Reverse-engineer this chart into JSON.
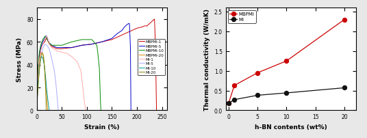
{
  "left_chart": {
    "xlabel": "Strain (%)",
    "ylabel": "Stress (MPa)",
    "xlim": [
      0,
      260
    ],
    "ylim": [
      0,
      90
    ],
    "xticks": [
      0,
      50,
      100,
      150,
      200,
      250
    ],
    "yticks": [
      0,
      20,
      40,
      60,
      80
    ],
    "curves": {
      "MBPMI-1": {
        "color": "#cc0000",
        "x": [
          0,
          2,
          5,
          8,
          12,
          16,
          18,
          20,
          22,
          25,
          30,
          40,
          50,
          70,
          90,
          110,
          130,
          150,
          160,
          170,
          180,
          190,
          200,
          210,
          215,
          220,
          225,
          230,
          235,
          237,
          239
        ],
        "y": [
          0,
          28,
          46,
          54,
          58,
          60,
          62,
          63,
          61,
          58,
          56,
          54,
          54,
          55,
          57,
          58,
          60,
          62,
          64,
          66,
          68,
          70,
          72,
          73,
          74,
          74,
          76,
          78,
          80,
          55,
          0
        ]
      },
      "MBPMI-5": {
        "color": "#0000cc",
        "x": [
          0,
          2,
          5,
          8,
          12,
          16,
          18,
          20,
          22,
          25,
          30,
          40,
          50,
          70,
          90,
          110,
          130,
          150,
          160,
          170,
          175,
          180,
          183,
          185,
          187,
          188
        ],
        "y": [
          0,
          30,
          48,
          55,
          60,
          63,
          65,
          65,
          62,
          59,
          57,
          55,
          55,
          55,
          57,
          58,
          60,
          63,
          67,
          70,
          73,
          75,
          76,
          76,
          55,
          0
        ]
      },
      "MBPMI-10": {
        "color": "#008800",
        "x": [
          0,
          2,
          5,
          8,
          12,
          15,
          17,
          20,
          25,
          30,
          50,
          70,
          90,
          110,
          120,
          122,
          125,
          127,
          128
        ],
        "y": [
          0,
          32,
          50,
          57,
          62,
          64,
          65,
          63,
          59,
          57,
          57,
          60,
          62,
          62,
          57,
          50,
          37,
          10,
          0
        ]
      },
      "MBPMI-20": {
        "color": "#dd8800",
        "x": [
          0,
          2,
          5,
          8,
          10,
          12,
          14,
          16,
          18,
          20,
          22
        ],
        "y": [
          0,
          26,
          44,
          50,
          51,
          50,
          45,
          35,
          20,
          10,
          0
        ]
      },
      "MI-1": {
        "color": "#ffaaaa",
        "x": [
          0,
          2,
          5,
          8,
          12,
          16,
          18,
          20,
          22,
          25,
          30,
          40,
          50,
          60,
          70,
          80,
          88,
          92,
          95,
          97,
          98
        ],
        "y": [
          0,
          22,
          42,
          52,
          58,
          62,
          64,
          65,
          63,
          58,
          55,
          52,
          51,
          50,
          47,
          43,
          35,
          20,
          8,
          2,
          0
        ]
      },
      "MI-5": {
        "color": "#aaaaff",
        "x": [
          0,
          2,
          5,
          8,
          12,
          15,
          17,
          20,
          25,
          30,
          35,
          38,
          40,
          42,
          43
        ],
        "y": [
          0,
          18,
          36,
          46,
          54,
          57,
          58,
          57,
          54,
          45,
          35,
          25,
          15,
          5,
          0
        ]
      },
      "MI-10": {
        "color": "#009999",
        "x": [
          0,
          2,
          4,
          6,
          8,
          10,
          12,
          15,
          18,
          20,
          22,
          24,
          25
        ],
        "y": [
          0,
          18,
          30,
          40,
          45,
          47,
          46,
          40,
          28,
          18,
          10,
          3,
          0
        ]
      },
      "MI-20": {
        "color": "#888800",
        "x": [
          0,
          2,
          4,
          6,
          8,
          10,
          12,
          14,
          16,
          18,
          19
        ],
        "y": [
          0,
          16,
          28,
          38,
          46,
          50,
          50,
          46,
          35,
          18,
          0
        ]
      }
    }
  },
  "right_chart": {
    "xlabel": "h-BN contents (wt%)",
    "ylabel": "Thermal conductivity (W/mK)",
    "xlim": [
      -0.5,
      22
    ],
    "ylim": [
      0.0,
      2.6
    ],
    "xticks": [
      0,
      5,
      10,
      15,
      20
    ],
    "yticks": [
      0.0,
      0.5,
      1.0,
      1.5,
      2.0,
      2.5
    ],
    "series": {
      "MBPMI": {
        "color": "#cc0000",
        "x": [
          0,
          1,
          5,
          10,
          20
        ],
        "y": [
          0.18,
          0.63,
          0.95,
          1.25,
          2.3
        ],
        "marker": "o",
        "filled": true
      },
      "MI": {
        "color": "#111111",
        "x": [
          0,
          1,
          5,
          10,
          20
        ],
        "y": [
          0.18,
          0.27,
          0.38,
          0.44,
          0.57
        ],
        "marker": "o",
        "filled": false
      }
    }
  },
  "bg_color": "#e8e8e8",
  "plot_bg": "#ffffff"
}
